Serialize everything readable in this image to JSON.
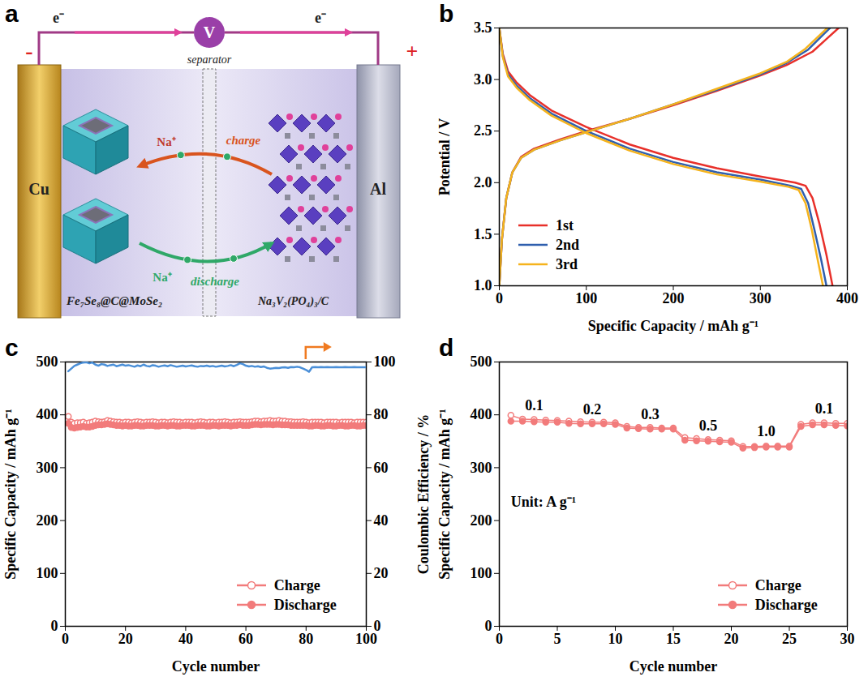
{
  "diagram": {
    "panel": "a",
    "electron": "e⁻",
    "meter": "V",
    "separator": "separator",
    "negative": "-",
    "positive": "+",
    "anode_collector": "Cu",
    "cathode_collector": "Al",
    "ion": "Na⁺",
    "charge": "charge",
    "discharge": "discharge",
    "anode": "Fe₇Se₈@C@MoSe₂",
    "cathode": "Na₃V₂(PO₄)₃/C"
  },
  "chart_data": [
    {
      "panel": "b",
      "type": "line",
      "xlabel": "Specific Capacity / mAh g⁻¹",
      "ylabel": "Potential / V",
      "xlim": [
        0,
        400
      ],
      "xticks": [
        0,
        100,
        200,
        300,
        400
      ],
      "ylim": [
        1.0,
        3.5
      ],
      "yticks": [
        {
          "value": 1.0,
          "label": "1.0"
        },
        {
          "value": 1.5,
          "label": "1.5"
        },
        {
          "value": 2.0,
          "label": "2.0"
        },
        {
          "value": 2.5,
          "label": "2.5"
        },
        {
          "value": 3.0,
          "label": "3.0"
        },
        {
          "value": 3.5,
          "label": "3.5"
        }
      ],
      "legend": "lower left",
      "series": [
        {
          "name": "1st",
          "color": "#e8302a",
          "x": [
            0,
            3,
            8,
            15,
            25,
            40,
            70,
            100,
            150,
            200,
            250,
            300,
            330,
            360,
            390,
            null,
            0,
            4,
            10,
            20,
            35,
            60,
            100,
            150,
            200,
            250,
            300,
            340,
            352,
            360,
            368,
            376,
            383
          ],
          "values": [
            1.0,
            1.45,
            1.85,
            2.1,
            2.25,
            2.33,
            2.42,
            2.5,
            2.62,
            2.75,
            2.89,
            3.04,
            3.14,
            3.27,
            3.5,
            null,
            3.5,
            3.25,
            3.08,
            2.97,
            2.85,
            2.7,
            2.54,
            2.37,
            2.24,
            2.14,
            2.06,
            2.0,
            1.97,
            1.85,
            1.6,
            1.3,
            1.0
          ]
        },
        {
          "name": "2nd",
          "color": "#2f5fae",
          "x": [
            0,
            3,
            8,
            15,
            25,
            40,
            70,
            100,
            150,
            200,
            250,
            300,
            330,
            355,
            380,
            null,
            0,
            4,
            10,
            20,
            35,
            60,
            100,
            150,
            200,
            250,
            300,
            335,
            347,
            355,
            362,
            370,
            376
          ],
          "values": [
            1.0,
            1.45,
            1.85,
            2.1,
            2.24,
            2.32,
            2.41,
            2.49,
            2.62,
            2.76,
            2.9,
            3.05,
            3.16,
            3.29,
            3.5,
            null,
            3.5,
            3.23,
            3.05,
            2.94,
            2.82,
            2.67,
            2.5,
            2.33,
            2.2,
            2.1,
            2.03,
            1.97,
            1.94,
            1.8,
            1.55,
            1.25,
            1.0
          ]
        },
        {
          "name": "3rd",
          "color": "#f5b31c",
          "x": [
            0,
            3,
            8,
            15,
            25,
            40,
            70,
            100,
            150,
            200,
            250,
            300,
            330,
            352,
            377,
            null,
            0,
            4,
            10,
            20,
            35,
            60,
            100,
            150,
            200,
            250,
            300,
            332,
            344,
            352,
            359,
            366,
            372
          ],
          "values": [
            1.0,
            1.45,
            1.85,
            2.1,
            2.24,
            2.32,
            2.41,
            2.49,
            2.62,
            2.76,
            2.91,
            3.06,
            3.17,
            3.3,
            3.5,
            null,
            3.5,
            3.22,
            3.03,
            2.92,
            2.8,
            2.65,
            2.48,
            2.31,
            2.18,
            2.08,
            2.01,
            1.96,
            1.93,
            1.8,
            1.55,
            1.25,
            1.0
          ]
        }
      ]
    },
    {
      "panel": "c",
      "type": "line",
      "xlabel": "Cycle number",
      "ylabel": "Specific Capacity / mAh g⁻¹",
      "y2label": "Coulombic Efficiency / %",
      "xlim": [
        0,
        100
      ],
      "xticks": [
        0,
        20,
        40,
        60,
        80,
        100
      ],
      "ylim": [
        0,
        500
      ],
      "yticks": [
        0,
        100,
        200,
        300,
        400,
        500
      ],
      "y2lim": [
        0,
        100
      ],
      "y2ticks": [
        0,
        20,
        40,
        60,
        80,
        100
      ],
      "legend": "lower right",
      "x": [
        1,
        2,
        3,
        4,
        5,
        6,
        7,
        8,
        9,
        10,
        11,
        12,
        13,
        14,
        15,
        16,
        17,
        18,
        19,
        20,
        21,
        22,
        23,
        24,
        25,
        26,
        27,
        28,
        29,
        30,
        31,
        32,
        33,
        34,
        35,
        36,
        37,
        38,
        39,
        40,
        41,
        42,
        43,
        44,
        45,
        46,
        47,
        48,
        49,
        50,
        51,
        52,
        53,
        54,
        55,
        56,
        57,
        58,
        59,
        60,
        61,
        62,
        63,
        64,
        65,
        66,
        67,
        68,
        69,
        70,
        71,
        72,
        73,
        74,
        75,
        76,
        77,
        78,
        79,
        80,
        81,
        82,
        83,
        84,
        85,
        86,
        87,
        88,
        89,
        90,
        91,
        92,
        93,
        94,
        95,
        96,
        97,
        98,
        99,
        100
      ],
      "series": [
        {
          "name": "Charge",
          "color": "#f27b7b",
          "marker": "open_circle",
          "values": [
            397,
            386,
            384,
            385,
            385,
            386,
            384,
            385,
            386,
            388,
            387,
            386,
            387,
            389,
            388,
            387,
            386,
            386,
            385,
            386,
            386,
            385,
            386,
            387,
            386,
            385,
            386,
            386,
            387,
            386,
            385,
            386,
            386,
            385,
            386,
            387,
            386,
            386,
            385,
            386,
            386,
            386,
            385,
            386,
            387,
            386,
            385,
            386,
            386,
            385,
            386,
            386,
            387,
            386,
            385,
            386,
            386,
            387,
            386,
            386,
            386,
            387,
            388,
            388,
            387,
            388,
            388,
            389,
            388,
            388,
            389,
            388,
            388,
            387,
            387,
            386,
            386,
            386,
            387,
            386,
            385,
            386,
            386,
            386,
            386,
            385,
            386,
            386,
            386,
            386,
            385,
            386,
            386,
            386,
            386,
            385,
            386,
            386,
            386,
            386
          ]
        },
        {
          "name": "Discharge",
          "color": "#f27b7b",
          "marker": "circle",
          "values": [
            384,
            376,
            375,
            376,
            377,
            378,
            377,
            377,
            378,
            380,
            381,
            381,
            382,
            383,
            382,
            381,
            380,
            380,
            379,
            380,
            379,
            379,
            380,
            380,
            379,
            379,
            380,
            380,
            380,
            379,
            379,
            380,
            380,
            379,
            380,
            380,
            379,
            379,
            380,
            380,
            380,
            379,
            379,
            380,
            380,
            380,
            379,
            379,
            380,
            380,
            379,
            380,
            380,
            380,
            379,
            380,
            380,
            381,
            380,
            380,
            380,
            381,
            382,
            382,
            381,
            382,
            382,
            382,
            381,
            382,
            382,
            381,
            381,
            381,
            380,
            380,
            380,
            380,
            380,
            380,
            379,
            379,
            380,
            380,
            379,
            379,
            380,
            380,
            379,
            379,
            380,
            380,
            379,
            379,
            380,
            380,
            379,
            379,
            380,
            380
          ]
        },
        {
          "axis": "y2",
          "color": "#4a8fd8",
          "values": [
            96.5,
            97.5,
            98.5,
            99.0,
            99.5,
            99.8,
            99.9,
            99.5,
            99.8,
            99.0,
            98.6,
            99.2,
            99.0,
            98.5,
            98.8,
            99.0,
            98.4,
            98.7,
            99.0,
            98.6,
            98.8,
            98.5,
            98.2,
            98.7,
            98.4,
            99.0,
            98.5,
            98.3,
            98.8,
            98.6,
            98.2,
            98.5,
            98.7,
            98.4,
            98.8,
            98.5,
            98.2,
            98.4,
            98.6,
            98.3,
            98.5,
            98.7,
            98.4,
            98.2,
            98.5,
            98.4,
            98.6,
            98.3,
            98.5,
            98.2,
            98.4,
            98.6,
            98.3,
            98.5,
            98.8,
            98.4,
            98.9,
            99.5,
            99.2,
            98.6,
            98.3,
            98.5,
            98.2,
            98.4,
            98.1,
            98.3,
            97.8,
            97.5,
            97.6,
            97.8,
            97.7,
            97.9,
            98.0,
            97.8,
            98.1,
            98.0,
            98.2,
            98.0,
            97.5,
            97.0,
            96.3,
            98.0,
            98.1,
            98.0,
            98.1,
            98.0,
            98.1,
            98.0,
            98.0,
            98.1,
            98.0,
            98.0,
            98.1,
            98.0,
            98.0,
            98.1,
            98.0,
            98.0,
            98.0,
            98.0
          ]
        }
      ]
    },
    {
      "panel": "d",
      "type": "line",
      "xlabel": "Cycle number",
      "ylabel": "Specific Capacity / mAh g⁻¹",
      "xlim": [
        0,
        30
      ],
      "xticks": [
        0,
        5,
        10,
        15,
        20,
        25,
        30
      ],
      "ylim": [
        0,
        500
      ],
      "yticks": [
        0,
        100,
        200,
        300,
        400,
        500
      ],
      "legend": "lower right",
      "x": [
        1,
        2,
        3,
        4,
        5,
        6,
        7,
        8,
        9,
        10,
        11,
        12,
        13,
        14,
        15,
        16,
        17,
        18,
        19,
        20,
        21,
        22,
        23,
        24,
        25,
        26,
        27,
        28,
        29,
        30
      ],
      "series": [
        {
          "name": "Charge",
          "color": "#f27b7b",
          "marker": "open_circle",
          "values": [
            399,
            392,
            391,
            390,
            389,
            388,
            387,
            386,
            386,
            385,
            378,
            376,
            376,
            375,
            375,
            357,
            355,
            353,
            352,
            351,
            340,
            340,
            341,
            341,
            341,
            382,
            385,
            385,
            384,
            384
          ]
        },
        {
          "name": "Discharge",
          "color": "#f27b7b",
          "marker": "circle",
          "values": [
            388,
            388,
            387,
            386,
            386,
            384,
            383,
            383,
            383,
            382,
            375,
            374,
            373,
            373,
            373,
            352,
            351,
            350,
            349,
            348,
            337,
            338,
            339,
            339,
            339,
            378,
            381,
            381,
            380,
            379
          ]
        }
      ],
      "annotations": [
        {
          "text": "0.1",
          "x": 3,
          "y": 418
        },
        {
          "text": "0.2",
          "x": 8,
          "y": 410
        },
        {
          "text": "0.3",
          "x": 13,
          "y": 400
        },
        {
          "text": "0.5",
          "x": 18,
          "y": 380
        },
        {
          "text": "1.0",
          "x": 23,
          "y": 368
        },
        {
          "text": "0.1",
          "x": 28,
          "y": 412
        }
      ],
      "note": {
        "text": "Unit: A g⁻¹",
        "x": 1,
        "y": 235
      }
    }
  ]
}
